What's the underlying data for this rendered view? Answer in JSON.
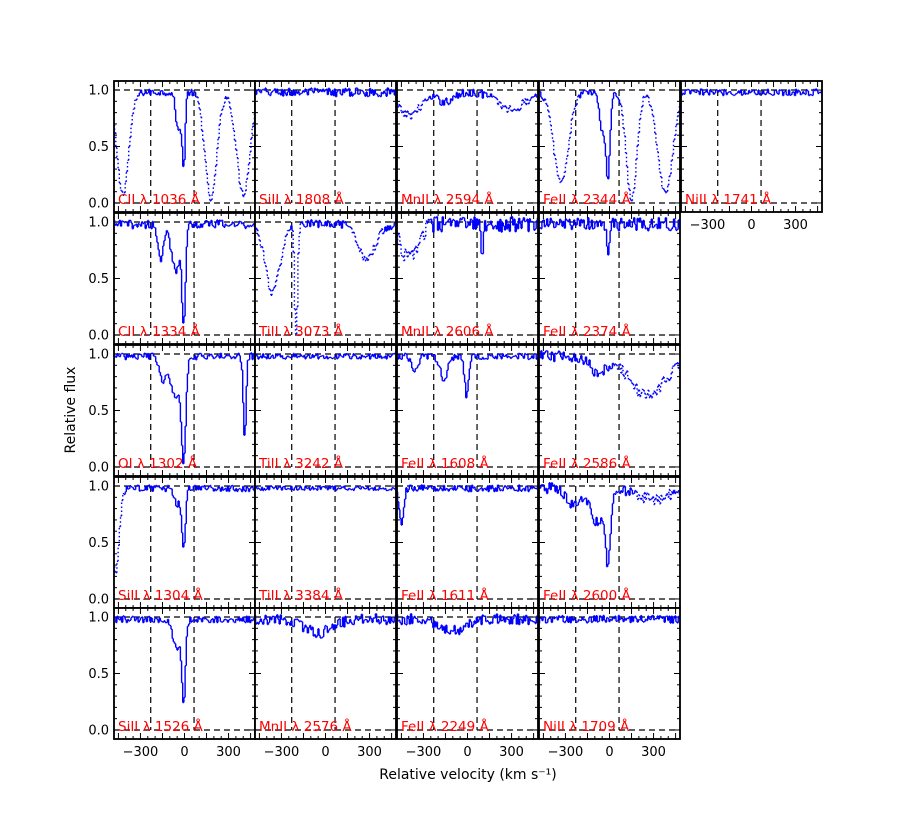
{
  "chart_data": {
    "type": "line",
    "xlabel": "Relative velocity (km s⁻¹)",
    "ylabel": "Relative flux",
    "xlim": [
      -480,
      480
    ],
    "ylim": [
      -0.08,
      1.08
    ],
    "x_ticks": [
      -300,
      0,
      300
    ],
    "x_tick_labels": [
      "−300",
      "0",
      "300"
    ],
    "y_ticks": [
      0.0,
      0.5,
      1.0
    ],
    "y_tick_labels": [
      "0.0",
      "0.5",
      "1.0"
    ],
    "reference_lines": {
      "continuum": 1.0,
      "zero": 0.0
    },
    "grid": false,
    "legend": "none",
    "colors": {
      "spectrum": "#0000ff",
      "label": "#ff0000",
      "guides": "#000000"
    },
    "panels": [
      {
        "label": "CII λ 1036 Å",
        "col": 0,
        "row": 0,
        "window": [
          -230,
          65
        ],
        "features": [
          {
            "v": -5,
            "depth": 0.62,
            "w": 10
          },
          {
            "v": -40,
            "depth": 0.35,
            "w": 18
          }
        ],
        "blends": [
          {
            "v": -420,
            "depth": 0.9,
            "w": 40
          },
          {
            "v": 180,
            "depth": 0.95,
            "w": 40
          },
          {
            "v": 400,
            "depth": 0.9,
            "w": 45
          }
        ],
        "noise": 0.03
      },
      {
        "label": "SiII λ 1808 Å",
        "col": 1,
        "row": 0,
        "window": [
          -230,
          65
        ],
        "features": [],
        "blends": [],
        "noise": 0.04
      },
      {
        "label": "MnII λ 2594 Å",
        "col": 2,
        "row": 0,
        "window": [
          -230,
          65
        ],
        "features": [
          {
            "v": -150,
            "depth": 0.08,
            "w": 60
          }
        ],
        "blends": [
          {
            "v": -400,
            "depth": 0.2,
            "w": 80
          },
          {
            "v": 300,
            "depth": 0.15,
            "w": 90
          }
        ],
        "noise": 0.04
      },
      {
        "label": "FeII λ 2344 Å",
        "col": 3,
        "row": 0,
        "window": [
          -230,
          65
        ],
        "features": [
          {
            "v": -10,
            "depth": 0.75,
            "w": 14
          },
          {
            "v": -50,
            "depth": 0.35,
            "w": 18
          }
        ],
        "blends": [
          {
            "v": -330,
            "depth": 0.8,
            "w": 50
          },
          {
            "v": 150,
            "depth": 0.95,
            "w": 35
          },
          {
            "v": 380,
            "depth": 0.9,
            "w": 50
          }
        ],
        "noise": 0.03
      },
      {
        "label": "NiII λ 1741 Å",
        "col": 4,
        "row": 0,
        "window": [
          -230,
          65
        ],
        "features": [],
        "blends": [],
        "noise": 0.03,
        "show_xticks": true
      },
      {
        "label": "CII λ 1334 Å",
        "col": 0,
        "row": 1,
        "window": [
          -230,
          65
        ],
        "features": [
          {
            "v": -5,
            "depth": 0.8,
            "w": 12
          },
          {
            "v": -60,
            "depth": 0.4,
            "w": 30
          },
          {
            "v": -160,
            "depth": 0.3,
            "w": 20
          }
        ],
        "blends": [],
        "noise": 0.04
      },
      {
        "label": "TiII λ 3073 Å",
        "col": 1,
        "row": 1,
        "window": [
          -230,
          65
        ],
        "features": [],
        "blends": [
          {
            "v": -200,
            "depth": 1.0,
            "w": 10
          },
          {
            "v": -360,
            "depth": 0.6,
            "w": 50
          },
          {
            "v": 280,
            "depth": 0.3,
            "w": 60
          }
        ],
        "noise": 0.04
      },
      {
        "label": "MnII λ 2606 Å",
        "col": 2,
        "row": 1,
        "window": [
          -230,
          65
        ],
        "features": [
          {
            "v": 100,
            "depth": 0.3,
            "w": 8
          }
        ],
        "blends": [
          {
            "v": -400,
            "depth": 0.3,
            "w": 60
          }
        ],
        "noise": 0.07
      },
      {
        "label": "FeII λ 2374 Å",
        "col": 3,
        "row": 1,
        "window": [
          -230,
          65
        ],
        "features": [
          {
            "v": -5,
            "depth": 0.25,
            "w": 10
          }
        ],
        "blends": [],
        "noise": 0.06
      },
      {
        "label": "OI λ 1302 Å",
        "col": 0,
        "row": 2,
        "window": [
          -230,
          65
        ],
        "features": [
          {
            "v": -5,
            "depth": 0.8,
            "w": 14
          },
          {
            "v": -60,
            "depth": 0.35,
            "w": 40
          },
          {
            "v": -150,
            "depth": 0.2,
            "w": 20
          },
          {
            "v": 410,
            "depth": 0.7,
            "w": 10
          }
        ],
        "blends": [],
        "noise": 0.03
      },
      {
        "label": "TiII λ 3242 Å",
        "col": 1,
        "row": 2,
        "window": [
          -230,
          65
        ],
        "features": [],
        "blends": [],
        "noise": 0.025
      },
      {
        "label": "FeII λ 1608 Å",
        "col": 2,
        "row": 2,
        "window": [
          -230,
          65
        ],
        "features": [
          {
            "v": -5,
            "depth": 0.35,
            "w": 14
          },
          {
            "v": -160,
            "depth": 0.2,
            "w": 25
          },
          {
            "v": -360,
            "depth": 0.15,
            "w": 20
          }
        ],
        "blends": [],
        "noise": 0.03
      },
      {
        "label": "FeII λ 2586 Å",
        "col": 3,
        "row": 2,
        "window": [
          -230,
          65
        ],
        "features": [
          {
            "v": -80,
            "depth": 0.15,
            "w": 50
          }
        ],
        "blends": [
          {
            "v": 260,
            "depth": 0.35,
            "w": 120
          }
        ],
        "noise": 0.05
      },
      {
        "label": "SiII λ 1304 Å",
        "col": 0,
        "row": 3,
        "window": [
          -230,
          65
        ],
        "features": [
          {
            "v": -5,
            "depth": 0.55,
            "w": 12
          },
          {
            "v": -50,
            "depth": 0.15,
            "w": 20
          }
        ],
        "blends": [
          {
            "v": -470,
            "depth": 0.75,
            "w": 25
          }
        ],
        "noise": 0.03
      },
      {
        "label": "TiII λ 3384 Å",
        "col": 1,
        "row": 3,
        "window": [
          -230,
          65
        ],
        "features": [],
        "blends": [],
        "noise": 0.02
      },
      {
        "label": "FeII λ 1611 Å",
        "col": 2,
        "row": 3,
        "window": [
          -230,
          65
        ],
        "features": [
          {
            "v": -450,
            "depth": 0.3,
            "w": 15
          }
        ],
        "blends": [],
        "noise": 0.03
      },
      {
        "label": "FeII λ 2600 Å",
        "col": 3,
        "row": 3,
        "window": [
          -230,
          65
        ],
        "features": [
          {
            "v": -10,
            "depth": 0.6,
            "w": 16
          },
          {
            "v": -80,
            "depth": 0.3,
            "w": 50
          },
          {
            "v": -250,
            "depth": 0.15,
            "w": 40
          }
        ],
        "blends": [
          {
            "v": 300,
            "depth": 0.1,
            "w": 100
          }
        ],
        "noise": 0.05
      },
      {
        "label": "SiII λ 1526 Å",
        "col": 0,
        "row": 4,
        "window": [
          -230,
          65
        ],
        "features": [
          {
            "v": -5,
            "depth": 0.68,
            "w": 12
          },
          {
            "v": -50,
            "depth": 0.25,
            "w": 30
          }
        ],
        "blends": [],
        "noise": 0.03
      },
      {
        "label": "MnII λ 2576 Å",
        "col": 1,
        "row": 4,
        "window": [
          -230,
          65
        ],
        "features": [
          {
            "v": -50,
            "depth": 0.12,
            "w": 100
          }
        ],
        "blends": [],
        "noise": 0.05
      },
      {
        "label": "FeII λ 2249 Å",
        "col": 2,
        "row": 4,
        "window": [
          -230,
          65
        ],
        "features": [
          {
            "v": -100,
            "depth": 0.1,
            "w": 80
          }
        ],
        "blends": [],
        "noise": 0.05
      },
      {
        "label": "NiII λ 1709 Å",
        "col": 3,
        "row": 4,
        "window": [
          -230,
          65
        ],
        "features": [],
        "blends": [],
        "noise": 0.035
      }
    ]
  }
}
